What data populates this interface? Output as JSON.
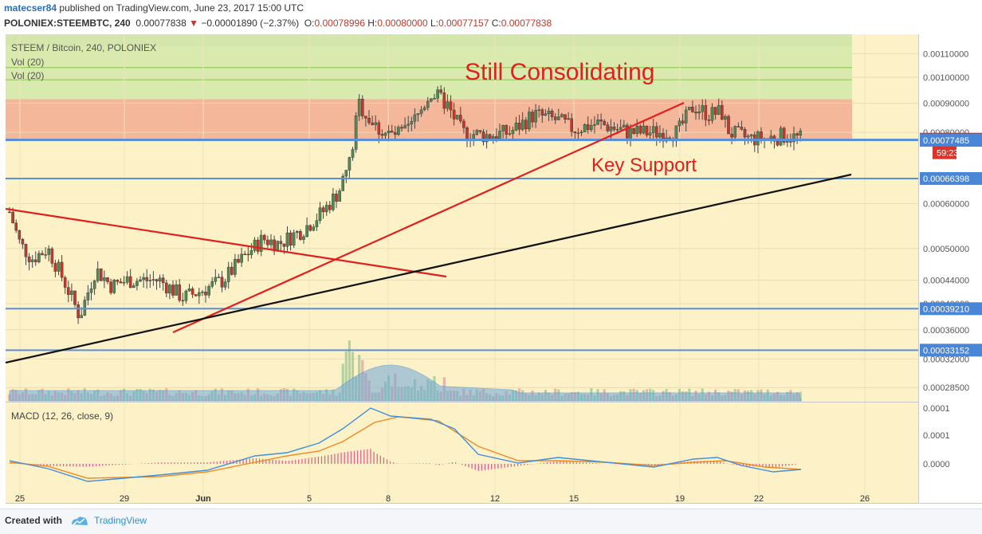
{
  "header": {
    "user": "matecser84",
    "published": "published on TradingView.com, June 23, 2017 15:00 UTC",
    "symbol": "POLONIEX:STEEMBTC, 240",
    "last": "0.00077838",
    "change": "−0.00001890 (−2.37%)",
    "o_label": "O:",
    "o": "0.00078996",
    "h_label": "H:",
    "h": "0.00080000",
    "l_label": "L:",
    "l": "0.00077157",
    "c_label": "C:",
    "c": "0.00077838"
  },
  "footer": {
    "created_with": "Created with",
    "brand": "TradingView"
  },
  "chart_data": {
    "type": "candlestick",
    "title": "STEEM / Bitcoin, 240, POLONIEX",
    "legend": [
      "Vol (20)",
      "Vol (20)"
    ],
    "annotations": [
      "Still Consolidating",
      "Key Support"
    ],
    "countdown": "59:23",
    "x_tick_labels": [
      "25",
      "29",
      "Jun",
      "5",
      "8",
      "12",
      "15",
      "19",
      "22",
      "26"
    ],
    "y_tick_labels": [
      "0.00110000",
      "0.00100000",
      "0.00090000",
      "0.00080000",
      "0.00060000",
      "0.00050000",
      "0.00044000",
      "0.00040000",
      "0.00036000",
      "0.00032000",
      "0.00028500"
    ],
    "y_tick_values": [
      0.0011,
      0.001,
      0.0009,
      0.0008,
      0.0006,
      0.0005,
      0.00044,
      0.0004,
      0.00036,
      0.00032,
      0.000285
    ],
    "y_scale": "log",
    "ylim": [
      0.00027,
      0.00119
    ],
    "price_levels": [
      {
        "label": "0.00077838",
        "value": 0.00077838,
        "style": "last"
      },
      {
        "label": "0.00077485",
        "value": 0.00077485,
        "style": "level"
      },
      {
        "label": "0.00066398",
        "value": 0.00066398,
        "style": "level"
      },
      {
        "label": "0.00039210",
        "value": 0.0003921,
        "style": "level"
      },
      {
        "label": "0.00033152",
        "value": 0.00033152,
        "style": "level"
      }
    ],
    "zones": [
      {
        "from": 0.000775,
        "to": 0.000915,
        "color": "#f2a98d"
      },
      {
        "from": 0.000915,
        "to": 0.00119,
        "color": "#cfe8a8"
      }
    ],
    "colors": {
      "up": "#4f8a56",
      "down": "#c0392b",
      "level": "#5b8fd6",
      "trend_red": "#e02020",
      "trend_black": "#111111",
      "macd": "#3d8fe0",
      "signal": "#f08a24"
    },
    "macd": {
      "label": "MACD (12, 26, close, 9)",
      "y_tick_labels": [
        "0.0001",
        "0.0001",
        "0.0000"
      ]
    }
  }
}
